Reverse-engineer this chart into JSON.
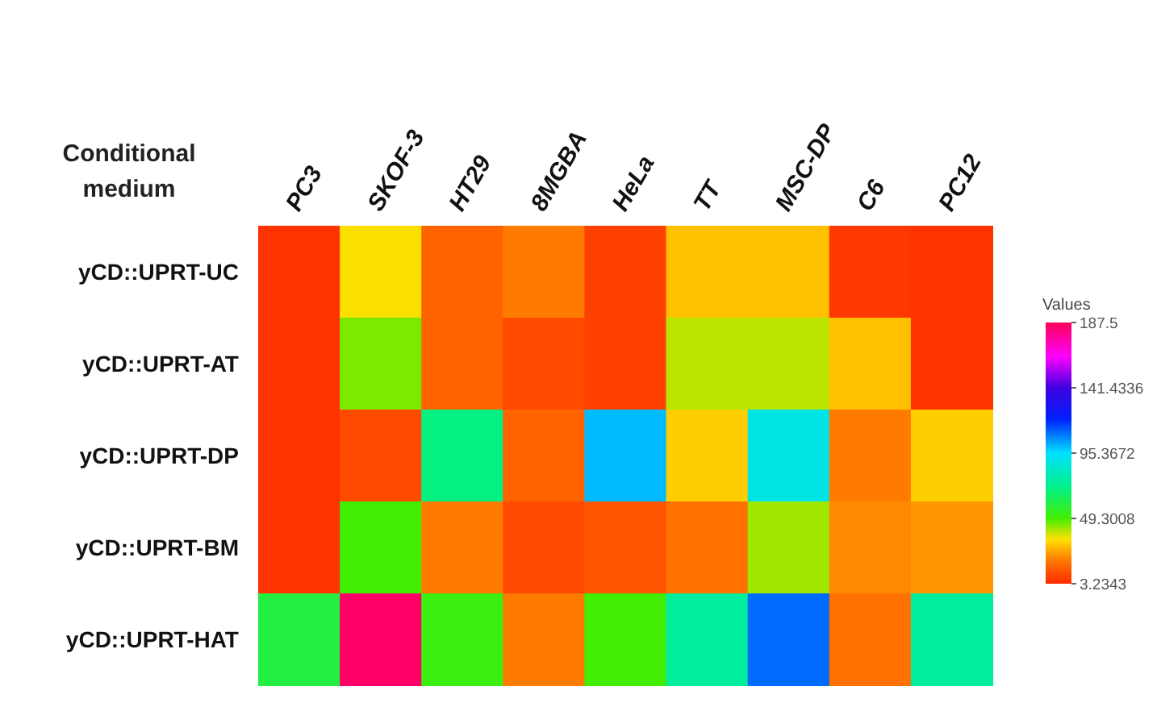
{
  "chart_data": {
    "type": "heatmap",
    "ylabel": "Conditional medium",
    "clabel": "Values",
    "categories": [
      "PC3",
      "SKOF-3",
      "HT29",
      "8MGBA",
      "HeLa",
      "TT",
      "MSC-DP",
      "C6",
      "PC12"
    ],
    "y_categories": [
      "yCD::UPRT-UC",
      "yCD::UPRT-AT",
      "yCD::UPRT-DP",
      "yCD::UPRT-BM",
      "yCD::UPRT-HAT"
    ],
    "cells": [
      [
        5,
        35,
        15,
        20,
        8,
        30,
        30,
        6,
        5
      ],
      [
        5,
        45,
        15,
        10,
        8,
        40,
        40,
        30,
        5
      ],
      [
        5,
        10,
        70,
        15,
        100,
        32,
        90,
        20,
        32
      ],
      [
        5,
        50,
        20,
        10,
        12,
        18,
        42,
        22,
        24
      ],
      [
        60,
        185,
        52,
        20,
        50,
        75,
        110,
        18,
        75
      ]
    ],
    "clim": [
      3.2343,
      187.5
    ],
    "cticks": [
      3.2343,
      49.3008,
      95.3672,
      141.4336,
      187.5
    ]
  }
}
